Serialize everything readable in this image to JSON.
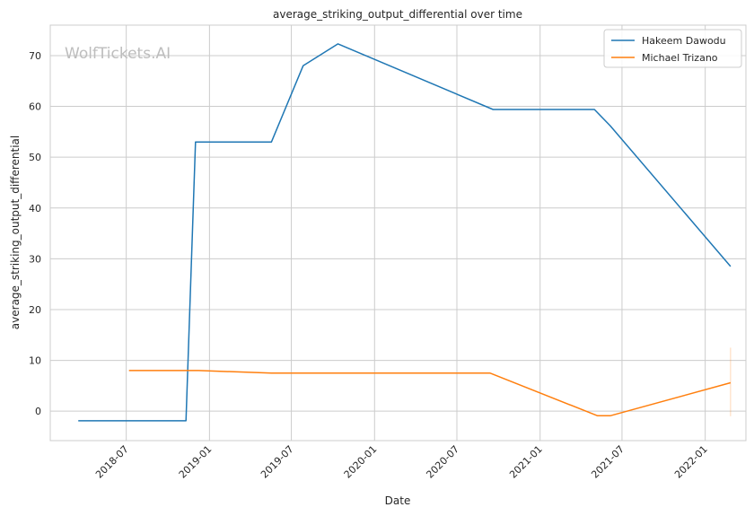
{
  "chart_data": {
    "type": "line",
    "title": "average_striking_output_differential over time",
    "xlabel": "Date",
    "ylabel": "average_striking_output_differential",
    "watermark": "WolfTickets.AI",
    "x_ticks": [
      "2018-07",
      "2019-01",
      "2019-07",
      "2020-01",
      "2020-07",
      "2021-01",
      "2021-07",
      "2022-01"
    ],
    "y_ticks": [
      0,
      10,
      20,
      30,
      40,
      50,
      60,
      70
    ],
    "xlim": [
      "2018-01-14",
      "2022-04-01"
    ],
    "ylim": [
      -5.8,
      76.0
    ],
    "grid": true,
    "legend_position": "top-right",
    "series": [
      {
        "name": "Hakeem Dawodu",
        "color": "#1f77b4",
        "points": [
          [
            "2018-03-17",
            -1.9
          ],
          [
            "2018-11-10",
            -1.9
          ],
          [
            "2018-12-01",
            53.0
          ],
          [
            "2019-05-18",
            53.0
          ],
          [
            "2019-07-27",
            68.0
          ],
          [
            "2019-10-12",
            72.3
          ],
          [
            "2020-09-19",
            59.4
          ],
          [
            "2021-05-01",
            59.4
          ],
          [
            "2021-06-05",
            56.2
          ],
          [
            "2022-02-26",
            28.5
          ]
        ]
      },
      {
        "name": "Michael Trizano",
        "color": "#ff7f0e",
        "points": [
          [
            "2018-07-07",
            8.0
          ],
          [
            "2018-12-08",
            8.0
          ],
          [
            "2019-05-18",
            7.5
          ],
          [
            "2020-09-12",
            7.5
          ],
          [
            "2021-05-08",
            -0.9
          ],
          [
            "2021-06-05",
            -0.9
          ],
          [
            "2022-02-26",
            5.6
          ]
        ],
        "error_band": {
          "x": "2022-02-26",
          "low": -1.0,
          "high": 12.5
        }
      }
    ]
  }
}
